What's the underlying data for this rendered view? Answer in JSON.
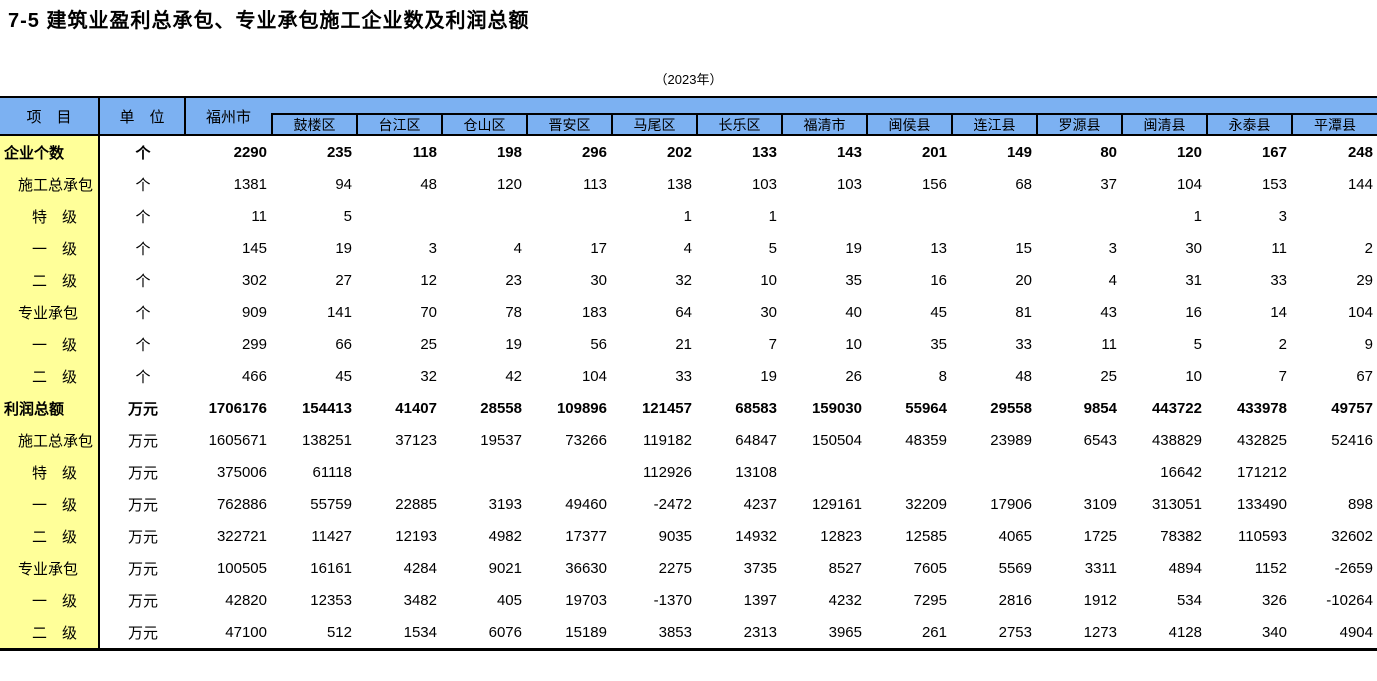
{
  "title": "7-5  建筑业盈利总承包、专业承包施工企业数及利润总额",
  "subtitle": "（2023年）",
  "colors": {
    "header_bg": "#7CB1F2",
    "row_label_bg": "#FFFF99",
    "border": "#000000",
    "text": "#000000",
    "page_bg": "#FFFFFF"
  },
  "table": {
    "corner_header": "项　目",
    "unit_header": "单　位",
    "city_header": "福州市",
    "district_headers": [
      "鼓楼区",
      "台江区",
      "仓山区",
      "晋安区",
      "马尾区",
      "长乐区",
      "福清市",
      "闽侯县",
      "连江县",
      "罗源县",
      "闽清县",
      "永泰县",
      "平潭县"
    ],
    "rows": [
      {
        "label": "企业个数",
        "indent": 0,
        "bold": true,
        "unit": "个",
        "values": [
          "2290",
          "235",
          "118",
          "198",
          "296",
          "202",
          "133",
          "143",
          "201",
          "149",
          "80",
          "120",
          "167",
          "248"
        ]
      },
      {
        "label": "施工总承包",
        "indent": 1,
        "bold": false,
        "unit": "个",
        "values": [
          "1381",
          "94",
          "48",
          "120",
          "113",
          "138",
          "103",
          "103",
          "156",
          "68",
          "37",
          "104",
          "153",
          "144"
        ]
      },
      {
        "label": "特　级",
        "indent": 2,
        "bold": false,
        "unit": "个",
        "values": [
          "11",
          "5",
          "",
          "",
          "",
          "1",
          "1",
          "",
          "",
          "",
          "",
          "1",
          "3",
          ""
        ]
      },
      {
        "label": "一　级",
        "indent": 2,
        "bold": false,
        "unit": "个",
        "values": [
          "145",
          "19",
          "3",
          "4",
          "17",
          "4",
          "5",
          "19",
          "13",
          "15",
          "3",
          "30",
          "11",
          "2"
        ]
      },
      {
        "label": "二　级",
        "indent": 2,
        "bold": false,
        "unit": "个",
        "values": [
          "302",
          "27",
          "12",
          "23",
          "30",
          "32",
          "10",
          "35",
          "16",
          "20",
          "4",
          "31",
          "33",
          "29"
        ]
      },
      {
        "label": "专业承包",
        "indent": 1,
        "bold": false,
        "unit": "个",
        "values": [
          "909",
          "141",
          "70",
          "78",
          "183",
          "64",
          "30",
          "40",
          "45",
          "81",
          "43",
          "16",
          "14",
          "104"
        ]
      },
      {
        "label": "一　级",
        "indent": 2,
        "bold": false,
        "unit": "个",
        "values": [
          "299",
          "66",
          "25",
          "19",
          "56",
          "21",
          "7",
          "10",
          "35",
          "33",
          "11",
          "5",
          "2",
          "9"
        ]
      },
      {
        "label": "二　级",
        "indent": 2,
        "bold": false,
        "unit": "个",
        "values": [
          "466",
          "45",
          "32",
          "42",
          "104",
          "33",
          "19",
          "26",
          "8",
          "48",
          "25",
          "10",
          "7",
          "67"
        ]
      },
      {
        "label": "利润总额",
        "indent": 0,
        "bold": true,
        "unit": "万元",
        "values": [
          "1706176",
          "154413",
          "41407",
          "28558",
          "109896",
          "121457",
          "68583",
          "159030",
          "55964",
          "29558",
          "9854",
          "443722",
          "433978",
          "49757"
        ]
      },
      {
        "label": "施工总承包",
        "indent": 1,
        "bold": false,
        "unit": "万元",
        "values": [
          "1605671",
          "138251",
          "37123",
          "19537",
          "73266",
          "119182",
          "64847",
          "150504",
          "48359",
          "23989",
          "6543",
          "438829",
          "432825",
          "52416"
        ]
      },
      {
        "label": "特　级",
        "indent": 2,
        "bold": false,
        "unit": "万元",
        "values": [
          "375006",
          "61118",
          "",
          "",
          "",
          "112926",
          "13108",
          "",
          "",
          "",
          "",
          "16642",
          "171212",
          ""
        ]
      },
      {
        "label": "一　级",
        "indent": 2,
        "bold": false,
        "unit": "万元",
        "values": [
          "762886",
          "55759",
          "22885",
          "3193",
          "49460",
          "-2472",
          "4237",
          "129161",
          "32209",
          "17906",
          "3109",
          "313051",
          "133490",
          "898"
        ]
      },
      {
        "label": "二　级",
        "indent": 2,
        "bold": false,
        "unit": "万元",
        "values": [
          "322721",
          "11427",
          "12193",
          "4982",
          "17377",
          "9035",
          "14932",
          "12823",
          "12585",
          "4065",
          "1725",
          "78382",
          "110593",
          "32602"
        ]
      },
      {
        "label": "专业承包",
        "indent": 1,
        "bold": false,
        "unit": "万元",
        "values": [
          "100505",
          "16161",
          "4284",
          "9021",
          "36630",
          "2275",
          "3735",
          "8527",
          "7605",
          "5569",
          "3311",
          "4894",
          "1152",
          "-2659"
        ]
      },
      {
        "label": "一　级",
        "indent": 2,
        "bold": false,
        "unit": "万元",
        "values": [
          "42820",
          "12353",
          "3482",
          "405",
          "19703",
          "-1370",
          "1397",
          "4232",
          "7295",
          "2816",
          "1912",
          "534",
          "326",
          "-10264"
        ]
      },
      {
        "label": "二　级",
        "indent": 2,
        "bold": false,
        "unit": "万元",
        "values": [
          "47100",
          "512",
          "1534",
          "6076",
          "15189",
          "3853",
          "2313",
          "3965",
          "261",
          "2753",
          "1273",
          "4128",
          "340",
          "4904"
        ]
      }
    ]
  }
}
